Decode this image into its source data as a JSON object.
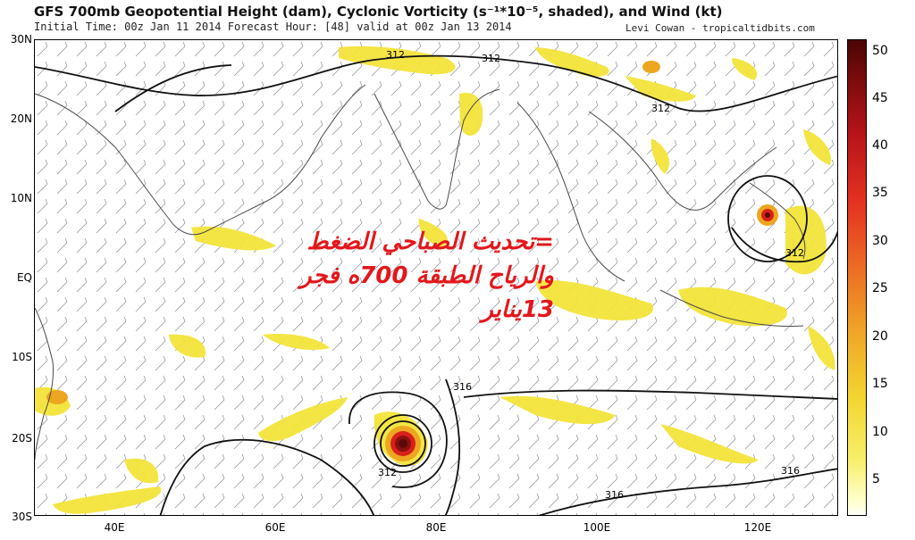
{
  "header": {
    "title": "GFS 700mb Geopotential Height (dam), Cyclonic Vorticity (s⁻¹*10⁻⁵, shaded), and Wind (kt)",
    "subtitle": "Initial Time: 00z Jan 11 2014 Forecast Hour: [48] valid at 00z Jan 13 2014",
    "credit": "Levi Cowan - tropicaltidbits.com"
  },
  "map": {
    "lat_labels": [
      "30N",
      "20N",
      "10N",
      "EQ",
      "10S",
      "20S",
      "30S"
    ],
    "lon_labels": [
      "40E",
      "60E",
      "80E",
      "100E",
      "120E"
    ],
    "contour_labels": [
      "312",
      "312",
      "312",
      "312",
      "316",
      "316",
      "316",
      "312"
    ]
  },
  "colorbar": {
    "labels": [
      "50",
      "45",
      "40",
      "35",
      "30",
      "25",
      "20",
      "15",
      "10",
      "5"
    ]
  },
  "annotation": {
    "line1": "=تحديث الصباحي الضغط",
    "line2": "والرياح الطبقة 700ه فجر",
    "line3": "13يناير"
  },
  "colors": {
    "shade_light": "#f3e43a",
    "shade_mid": "#eca620",
    "shade_red": "#d8201a",
    "shade_dark": "#5a0a0a",
    "annotation": "#e3171b"
  }
}
